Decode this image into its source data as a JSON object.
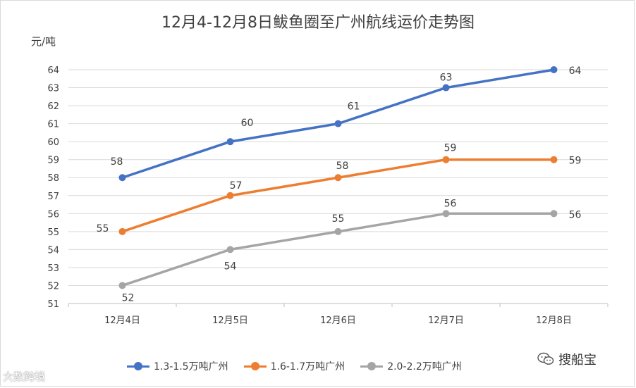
{
  "title": "12月4-12月8日鲅鱼圈至广州航线运价走势图",
  "y_unit_label": "元/吨",
  "watermark_left": "大数跨境",
  "watermark_right": "搜船宝",
  "chart_data": {
    "type": "line",
    "title": "12月4-12月8日鲅鱼圈至广州航线运价走势图",
    "ylabel": "元/吨",
    "xlabel": "",
    "categories": [
      "12月4日",
      "12月5日",
      "12月6日",
      "12月7日",
      "12月8日"
    ],
    "ylim": [
      51,
      64
    ],
    "yticks": [
      51,
      52,
      53,
      54,
      55,
      56,
      57,
      58,
      59,
      60,
      61,
      62,
      63,
      64
    ],
    "grid": true,
    "legend_position": "bottom",
    "series": [
      {
        "name": "1.3-1.5万吨广州",
        "values": [
          58,
          60,
          61,
          63,
          64
        ],
        "color": "#4472c4"
      },
      {
        "name": "1.6-1.7万吨广州",
        "values": [
          55,
          57,
          58,
          59,
          59
        ],
        "color": "#ed7d31"
      },
      {
        "name": "2.0-2.2万吨广州",
        "values": [
          52,
          54,
          55,
          56,
          56
        ],
        "color": "#a5a5a5"
      }
    ]
  }
}
